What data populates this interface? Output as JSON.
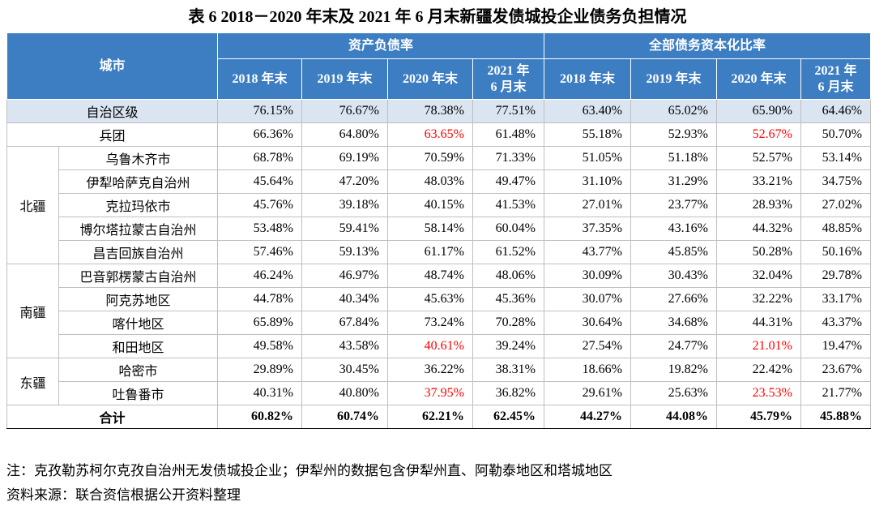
{
  "title": "表 6 2018－2020 年末及 2021 年 6 月末新疆发债城投企业债务负担情况",
  "table": {
    "header": {
      "city": "城市",
      "groups": [
        "资产负债率",
        "全部债务资本化比率"
      ],
      "periods": [
        "2018 年末",
        "2019 年末",
        "2020 年末",
        "2021 年\n6 月末",
        "2018 年末",
        "2019 年末",
        "2020 年末",
        "2021 年\n6 月末"
      ]
    },
    "highlight_color": "#ff0000",
    "rows": [
      {
        "name": "自治区级",
        "values": [
          "76.15%",
          "76.67%",
          "78.38%",
          "77.51%",
          "63.40%",
          "65.02%",
          "65.90%",
          "64.46%"
        ]
      },
      {
        "name": "兵团",
        "values": [
          "66.36%",
          "64.80%",
          "63.65%",
          "61.48%",
          "55.18%",
          "52.93%",
          "52.67%",
          "50.70%"
        ],
        "red": [
          2,
          6
        ]
      },
      {
        "region": "北疆",
        "items": [
          {
            "name": "乌鲁木齐市",
            "values": [
              "68.78%",
              "69.19%",
              "70.59%",
              "71.33%",
              "51.05%",
              "51.18%",
              "52.57%",
              "53.14%"
            ]
          },
          {
            "name": "伊犁哈萨克自治州",
            "values": [
              "45.64%",
              "47.20%",
              "48.03%",
              "49.47%",
              "31.10%",
              "31.29%",
              "33.21%",
              "34.75%"
            ]
          },
          {
            "name": "克拉玛依市",
            "values": [
              "45.76%",
              "39.18%",
              "40.15%",
              "41.53%",
              "27.01%",
              "23.77%",
              "28.93%",
              "27.02%"
            ]
          },
          {
            "name": "博尔塔拉蒙古自治州",
            "values": [
              "53.48%",
              "59.41%",
              "58.14%",
              "60.04%",
              "37.35%",
              "43.16%",
              "44.32%",
              "48.85%"
            ]
          },
          {
            "name": "昌吉回族自治州",
            "values": [
              "57.46%",
              "59.13%",
              "61.17%",
              "61.52%",
              "43.77%",
              "45.85%",
              "50.28%",
              "50.16%"
            ]
          }
        ]
      },
      {
        "region": "南疆",
        "items": [
          {
            "name": "巴音郭楞蒙古自治州",
            "values": [
              "46.24%",
              "46.97%",
              "48.74%",
              "48.06%",
              "30.09%",
              "30.43%",
              "32.04%",
              "29.78%"
            ]
          },
          {
            "name": "阿克苏地区",
            "values": [
              "44.78%",
              "40.34%",
              "45.63%",
              "45.36%",
              "30.07%",
              "27.66%",
              "32.22%",
              "33.17%"
            ]
          },
          {
            "name": "喀什地区",
            "values": [
              "65.89%",
              "67.84%",
              "73.24%",
              "70.28%",
              "30.64%",
              "34.68%",
              "44.31%",
              "43.37%"
            ]
          },
          {
            "name": "和田地区",
            "values": [
              "49.58%",
              "43.58%",
              "40.61%",
              "39.24%",
              "27.54%",
              "24.77%",
              "21.01%",
              "19.47%"
            ],
            "red": [
              2,
              6
            ]
          }
        ]
      },
      {
        "region": "东疆",
        "items": [
          {
            "name": "哈密市",
            "values": [
              "29.89%",
              "30.45%",
              "36.22%",
              "38.31%",
              "18.66%",
              "19.82%",
              "22.42%",
              "23.67%"
            ]
          },
          {
            "name": "吐鲁番市",
            "values": [
              "40.31%",
              "40.80%",
              "37.95%",
              "36.82%",
              "29.61%",
              "25.63%",
              "23.53%",
              "21.77%"
            ],
            "red": [
              2,
              6
            ]
          }
        ]
      },
      {
        "name": "合计",
        "values": [
          "60.82%",
          "60.74%",
          "62.21%",
          "62.45%",
          "44.27%",
          "44.08%",
          "45.79%",
          "45.88%"
        ]
      }
    ]
  },
  "notes": [
    "注：克孜勒苏柯尔克孜自治州无发债城投企业；伊犁州的数据包含伊犁州直、阿勒泰地区和塔城地区",
    "资料来源：联合资信根据公开资料整理"
  ]
}
